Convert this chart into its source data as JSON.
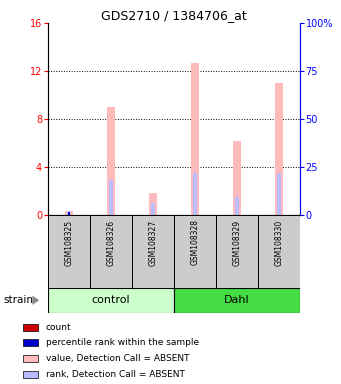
{
  "title": "GDS2710 / 1384706_at",
  "samples": [
    "GSM108325",
    "GSM108326",
    "GSM108327",
    "GSM108328",
    "GSM108329",
    "GSM108330"
  ],
  "group_colors": {
    "control": "#ccffcc",
    "Dahl": "#44dd44"
  },
  "value_absent": [
    0.3,
    9.0,
    1.8,
    12.7,
    6.2,
    11.0
  ],
  "rank_absent": [
    0.35,
    2.9,
    1.0,
    3.5,
    1.5,
    3.5
  ],
  "count_present": [
    0.0,
    0.0,
    0.0,
    0.0,
    0.0,
    0.0
  ],
  "rank_present": [
    0.28,
    0.0,
    0.0,
    0.0,
    0.0,
    0.0
  ],
  "ylim_left": [
    0,
    16
  ],
  "ylim_right": [
    0,
    100
  ],
  "yticks_left": [
    0,
    4,
    8,
    12,
    16
  ],
  "yticks_right": [
    0,
    25,
    50,
    75,
    100
  ],
  "ytick_labels_right": [
    "0",
    "25",
    "50",
    "75",
    "100%"
  ],
  "color_value_absent": "#ffbbbb",
  "color_rank_absent": "#bbbbff",
  "color_count": "#cc0000",
  "color_rank_present": "#0000cc",
  "gray_bg": "#cccccc",
  "white_bg": "#ffffff"
}
